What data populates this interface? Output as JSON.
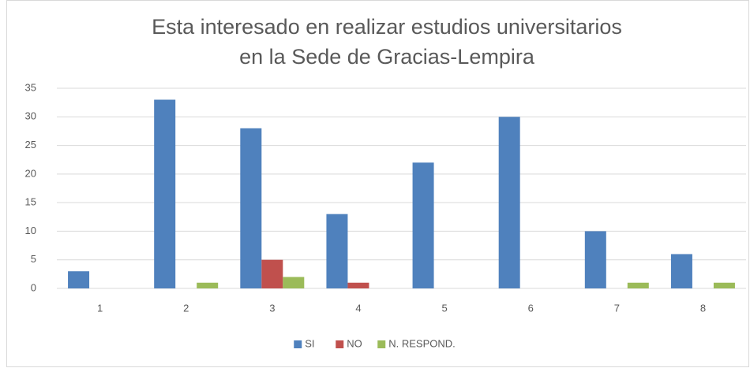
{
  "chart_data": {
    "type": "bar",
    "title": [
      "Esta interesado en realizar estudios universitarios",
      "en la Sede de Gracias-Lempira"
    ],
    "categories": [
      "1",
      "2",
      "3",
      "4",
      "5",
      "6",
      "7",
      "8"
    ],
    "series": [
      {
        "name": "SI",
        "color": "#4f81bd",
        "values": [
          3,
          33,
          28,
          13,
          22,
          30,
          10,
          6
        ]
      },
      {
        "name": "NO",
        "color": "#c0504d",
        "values": [
          0,
          0,
          5,
          1,
          0,
          0,
          0,
          0
        ]
      },
      {
        "name": "N. RESPOND.",
        "color": "#9bbb59",
        "values": [
          0,
          1,
          2,
          0,
          0,
          0,
          1,
          1
        ]
      }
    ],
    "ylim": [
      0,
      35
    ],
    "yticks": [
      0,
      5,
      10,
      15,
      20,
      25,
      30,
      35
    ],
    "grid": true,
    "legend": "bottom"
  }
}
